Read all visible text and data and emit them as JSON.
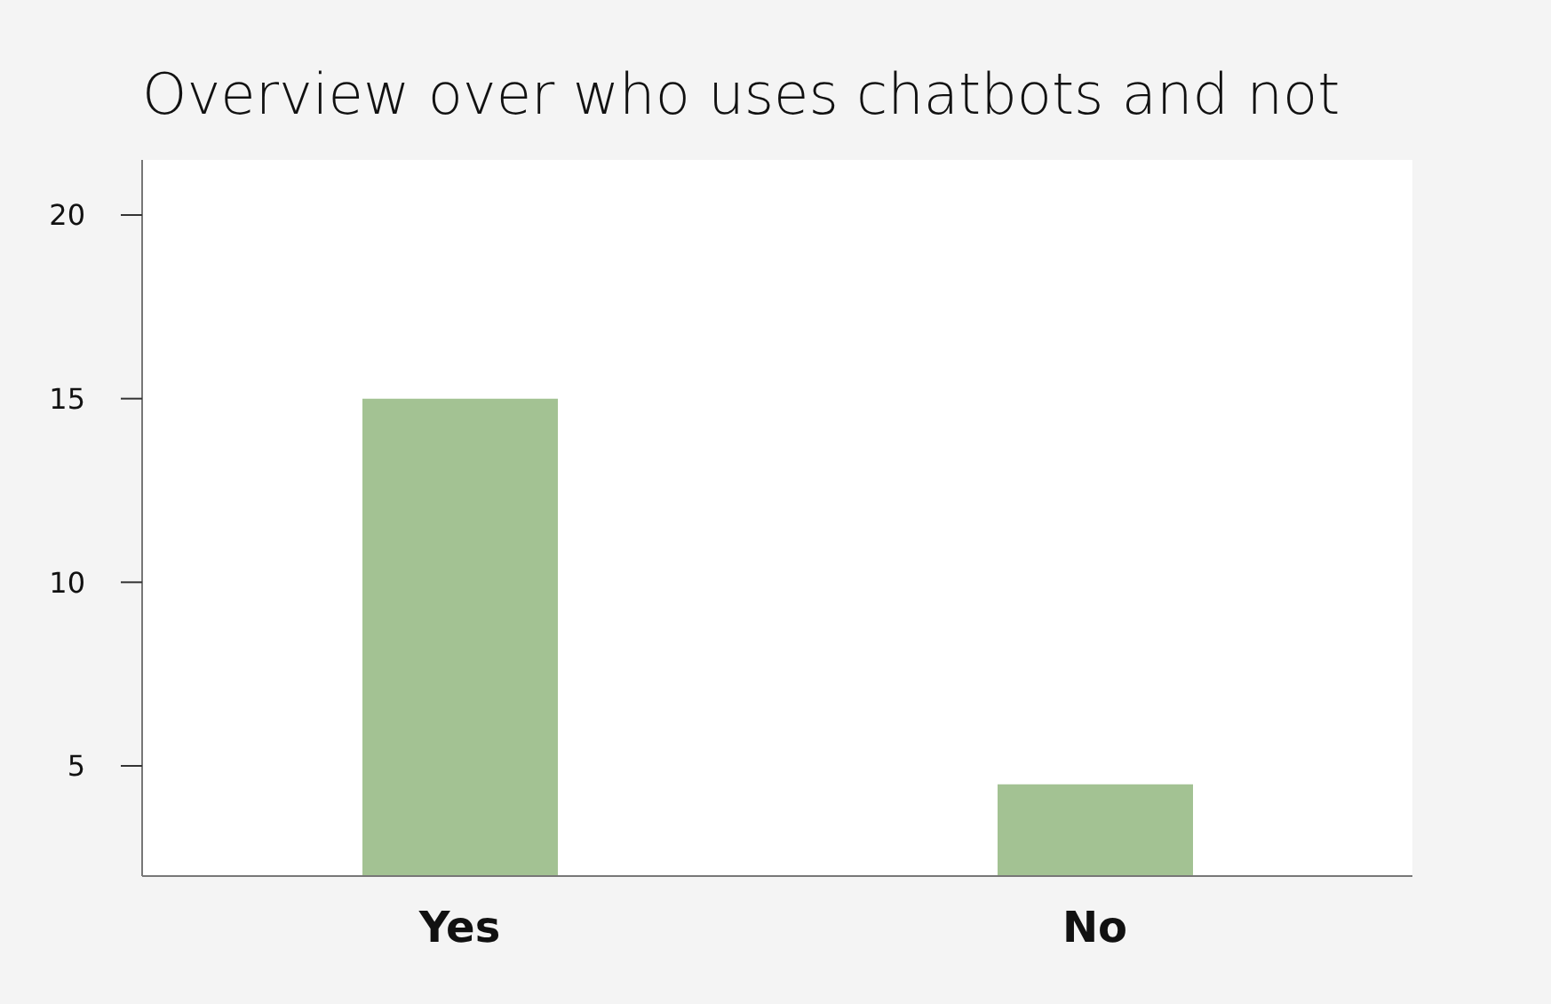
{
  "chart_data": {
    "type": "bar",
    "title": "Overview over who uses chatbots and not",
    "categories": [
      "Yes",
      "No"
    ],
    "values": [
      15,
      4.5
    ],
    "color": "#a3c293",
    "ylim": [
      2,
      21.5
    ],
    "yticks": [
      5,
      10,
      15,
      20
    ],
    "grid": false,
    "legend": false
  }
}
